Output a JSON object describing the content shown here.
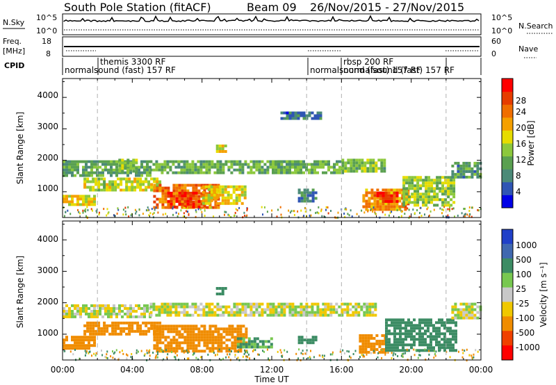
{
  "header": {
    "station": "South Pole Station (fitACF)",
    "beam": "Beam 09",
    "date_range": "26/Nov/2015 - 27/Nov/2015"
  },
  "noise_panel": {
    "left_label": "N.Sky",
    "left_ticks": [
      "10^5",
      "10^0"
    ],
    "right_ticks": [
      "10^5",
      "10^0"
    ],
    "right_label": "N.Search"
  },
  "freq_panel": {
    "left_label_1": "Freq.",
    "left_label_2": "[MHz]",
    "left_ticks": [
      "18",
      "8"
    ],
    "right_ticks": [
      "60",
      "0"
    ],
    "right_label": "Nave"
  },
  "cpid_panel": {
    "label": "CPID",
    "entries": [
      {
        "text": "normalsound (fast) 157 RF",
        "row": "low"
      },
      {
        "text": "themis 3300 RF",
        "row": "high"
      },
      {
        "text": "normalsound (fast) 157 RF",
        "row": "low"
      },
      {
        "text": "rbsp 200 RF",
        "row": "high"
      },
      {
        "text": "normalsound (fast) 157 RF",
        "row": "low"
      }
    ]
  },
  "x_axis": {
    "label": "Time UT",
    "ticks": [
      "00:00",
      "04:00",
      "08:00",
      "12:00",
      "16:00",
      "20:00",
      "00:00"
    ]
  },
  "power_panel": {
    "y_label": "Slant Range [km]",
    "y_ticks": [
      "1000",
      "2000",
      "3000",
      "4000"
    ],
    "cbar_label": "Power [dB]",
    "cbar_ticks": [
      "4",
      "8",
      "12",
      "16",
      "20",
      "24",
      "28"
    ]
  },
  "velocity_panel": {
    "y_label": "Slant Range [km]",
    "y_ticks": [
      "1000",
      "2000",
      "3000",
      "4000"
    ],
    "cbar_label": "Velocity [m s⁻¹]",
    "cbar_ticks": [
      "1000",
      "500",
      "100",
      "25",
      "-25",
      "-100",
      "-500",
      "-1000"
    ]
  },
  "chart_data": {
    "type": "heatmap",
    "title": "South Pole Station (fitACF) Beam 09 26/Nov/2015 - 27/Nov/2015",
    "xlabel": "Time UT",
    "ylabel": "Slant Range [km]",
    "xlim_hours": [
      0,
      24
    ],
    "ylim_km": [
      180,
      4600
    ],
    "mode_change_hours": [
      2.0,
      14.0,
      16.0,
      22.0
    ],
    "power": {
      "unit": "dB",
      "range": [
        0,
        32
      ],
      "colors": [
        "#0000e6",
        "#2f55b4",
        "#4b8a78",
        "#5aa050",
        "#8cc83c",
        "#e6dc00",
        "#f5a000",
        "#f06e00",
        "#e63c00",
        "#ff0000"
      ],
      "regions": [
        {
          "t": [
            0.0,
            1.8
          ],
          "r": [
            550,
            900
          ],
          "dB": 18
        },
        {
          "t": [
            0.0,
            5.0
          ],
          "r": [
            1550,
            2000
          ],
          "dB": 11
        },
        {
          "t": [
            1.2,
            5.6
          ],
          "r": [
            1050,
            1450
          ],
          "dB": 16
        },
        {
          "t": [
            3.2,
            4.2
          ],
          "r": [
            1650,
            2050
          ],
          "dB": 14
        },
        {
          "t": [
            5.2,
            9.0
          ],
          "r": [
            500,
            1250
          ],
          "dB": 24
        },
        {
          "t": [
            6.0,
            8.2
          ],
          "r": [
            550,
            1000
          ],
          "dB": 28
        },
        {
          "t": [
            5.0,
            13.5
          ],
          "r": [
            1600,
            2000
          ],
          "dB": 12
        },
        {
          "t": [
            8.0,
            10.5
          ],
          "r": [
            600,
            1200
          ],
          "dB": 18
        },
        {
          "t": [
            8.8,
            9.3
          ],
          "r": [
            2300,
            2500
          ],
          "dB": 18
        },
        {
          "t": [
            12.0,
            16.0
          ],
          "r": [
            1600,
            2000
          ],
          "dB": 12
        },
        {
          "t": [
            12.5,
            14.8
          ],
          "r": [
            3300,
            3550
          ],
          "dB": 7
        },
        {
          "t": [
            13.5,
            14.5
          ],
          "r": [
            700,
            1100
          ],
          "dB": 8
        },
        {
          "t": [
            16.0,
            18.5
          ],
          "r": [
            1650,
            2050
          ],
          "dB": 13
        },
        {
          "t": [
            17.2,
            19.8
          ],
          "r": [
            450,
            1100
          ],
          "dB": 22
        },
        {
          "t": [
            18.0,
            19.2
          ],
          "r": [
            650,
            1000
          ],
          "dB": 28
        },
        {
          "t": [
            19.5,
            22.5
          ],
          "r": [
            600,
            1500
          ],
          "dB": 15
        },
        {
          "t": [
            22.3,
            24.0
          ],
          "r": [
            1500,
            1950
          ],
          "dB": 10
        }
      ]
    },
    "velocity": {
      "unit": "m s⁻¹",
      "levels": [
        1000,
        500,
        100,
        25,
        -25,
        -100,
        -500,
        -1000
      ],
      "colors": [
        "#2040c8",
        "#4068b0",
        "#3c8c64",
        "#78c850",
        "#c8c8c8",
        "#f0c800",
        "#f08c00",
        "#f04000",
        "#ff0000"
      ],
      "regions": [
        {
          "t": [
            0.0,
            5.0
          ],
          "r": [
            1550,
            1950
          ],
          "v": 0
        },
        {
          "t": [
            0.0,
            1.8
          ],
          "r": [
            550,
            950
          ],
          "v": -400
        },
        {
          "t": [
            1.2,
            5.6
          ],
          "r": [
            1000,
            1400
          ],
          "v": -300
        },
        {
          "t": [
            5.2,
            10.5
          ],
          "r": [
            500,
            1300
          ],
          "v": -350
        },
        {
          "t": [
            5.0,
            15.0
          ],
          "r": [
            1600,
            2000
          ],
          "v": 0
        },
        {
          "t": [
            8.8,
            9.3
          ],
          "r": [
            2300,
            2500
          ],
          "v": 300
        },
        {
          "t": [
            10.0,
            12.0
          ],
          "r": [
            600,
            900
          ],
          "v": 150
        },
        {
          "t": [
            13.5,
            14.5
          ],
          "r": [
            700,
            950
          ],
          "v": 200
        },
        {
          "t": [
            15.0,
            18.0
          ],
          "r": [
            1600,
            2000
          ],
          "v": 0
        },
        {
          "t": [
            17.0,
            18.5
          ],
          "r": [
            450,
            1000
          ],
          "v": -300
        },
        {
          "t": [
            18.5,
            22.5
          ],
          "r": [
            500,
            1500
          ],
          "v": 200
        },
        {
          "t": [
            22.3,
            24.0
          ],
          "r": [
            1550,
            2000
          ],
          "v": 0
        }
      ]
    }
  }
}
